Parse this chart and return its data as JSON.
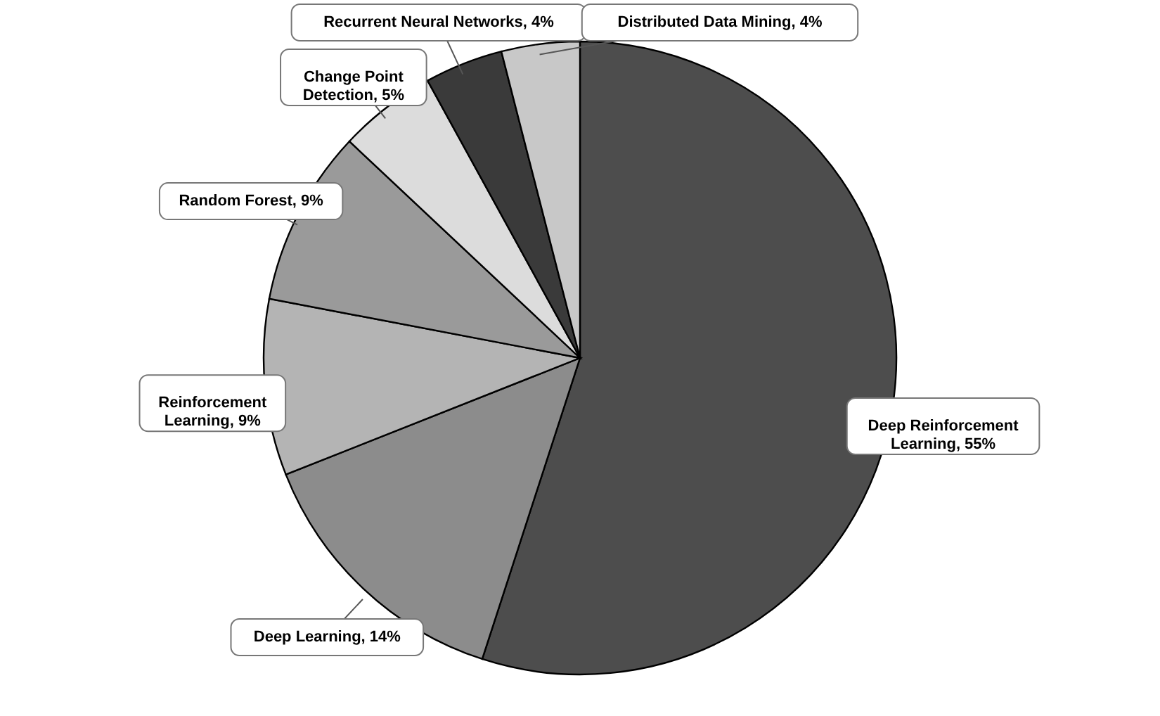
{
  "chart_data": {
    "type": "pie",
    "categories": [
      "Deep Reinforcement Learning",
      "Deep Learning",
      "Reinforcement Learning",
      "Random Forest",
      "Change Point Detection",
      "Recurrent Neural Networks",
      "Distributed Data Mining"
    ],
    "values": [
      55,
      14,
      9,
      9,
      5,
      4,
      4
    ],
    "value_labels": [
      "55%",
      "14%",
      "9%",
      "9%",
      "5%",
      "4%",
      "4%"
    ],
    "colors": [
      "#4d4d4d",
      "#8c8c8c",
      "#b4b4b4",
      "#9a9a9a",
      "#dcdcdc",
      "#3a3a3a",
      "#c8c8c8"
    ]
  }
}
